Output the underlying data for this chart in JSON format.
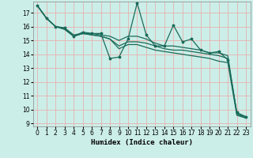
{
  "xlabel": "Humidex (Indice chaleur)",
  "xlim": [
    -0.5,
    23.5
  ],
  "ylim": [
    8.8,
    17.8
  ],
  "yticks": [
    9,
    10,
    11,
    12,
    13,
    14,
    15,
    16,
    17
  ],
  "xticks": [
    0,
    1,
    2,
    3,
    4,
    5,
    6,
    7,
    8,
    9,
    10,
    11,
    12,
    13,
    14,
    15,
    16,
    17,
    18,
    19,
    20,
    21,
    22,
    23
  ],
  "bg_color": "#cceee8",
  "grid_color": "#e8b0b0",
  "line_color": "#1a6b5a",
  "line1_y": [
    17.5,
    16.6,
    16.0,
    15.9,
    15.3,
    15.6,
    15.5,
    15.5,
    13.7,
    13.8,
    15.1,
    17.7,
    15.4,
    14.6,
    14.6,
    16.1,
    14.9,
    15.1,
    14.3,
    14.1,
    14.2,
    13.6,
    9.8,
    9.5
  ],
  "line2_y": [
    17.5,
    16.6,
    16.0,
    15.9,
    15.4,
    15.5,
    15.5,
    15.4,
    15.3,
    15.0,
    15.3,
    15.3,
    15.1,
    14.8,
    14.6,
    14.6,
    14.5,
    14.4,
    14.3,
    14.1,
    14.1,
    13.9,
    9.7,
    9.5
  ],
  "line3_y": [
    17.5,
    16.6,
    16.0,
    15.8,
    15.3,
    15.5,
    15.4,
    15.3,
    15.1,
    14.6,
    14.9,
    14.9,
    14.8,
    14.6,
    14.4,
    14.3,
    14.3,
    14.2,
    14.1,
    14.0,
    13.9,
    13.7,
    9.7,
    9.4
  ],
  "line4_y": [
    17.5,
    16.6,
    16.0,
    15.8,
    15.3,
    15.5,
    15.4,
    15.3,
    15.1,
    14.4,
    14.7,
    14.7,
    14.5,
    14.3,
    14.2,
    14.1,
    14.0,
    13.9,
    13.8,
    13.7,
    13.5,
    13.4,
    9.6,
    9.4
  ]
}
